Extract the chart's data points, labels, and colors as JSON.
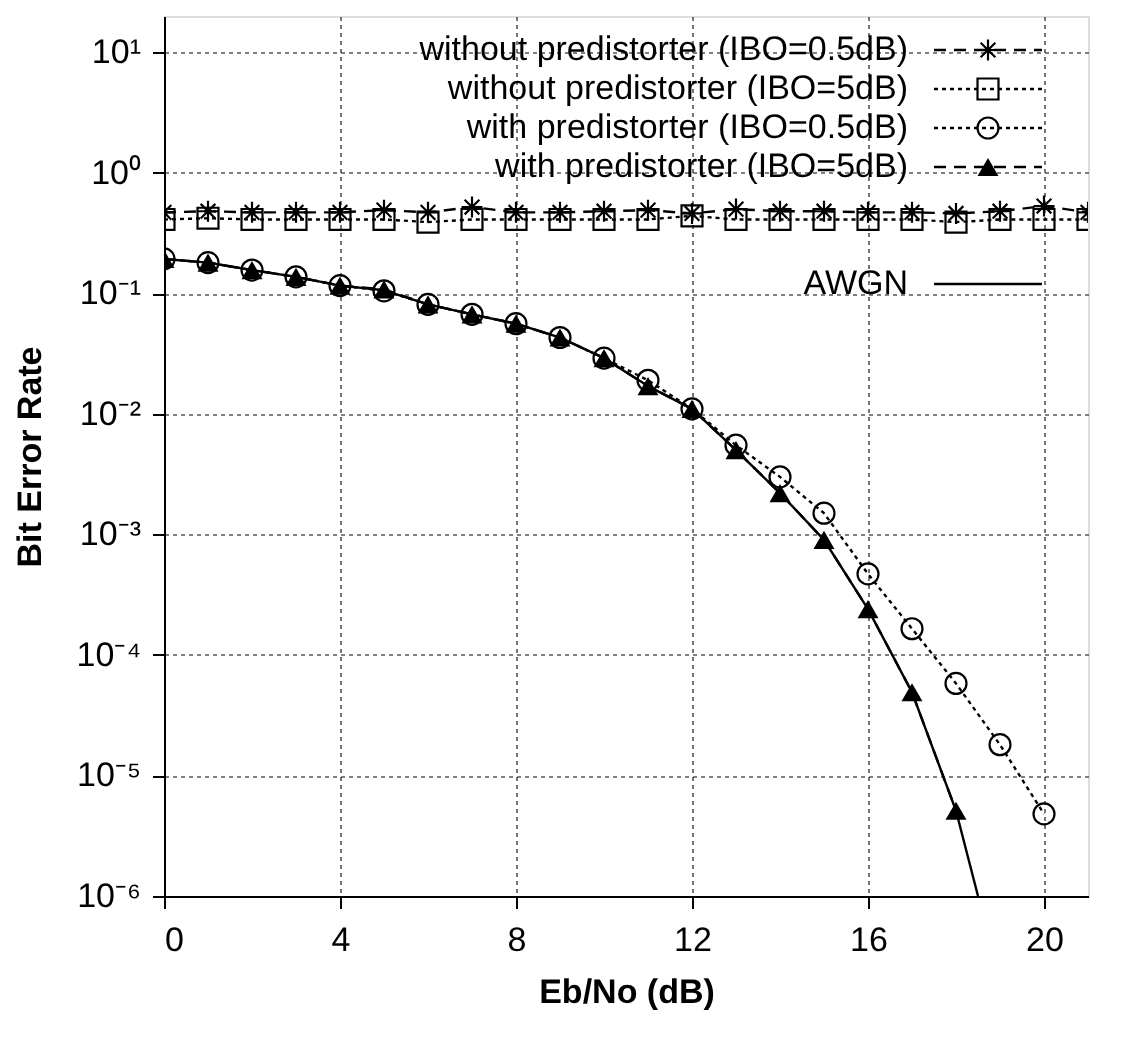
{
  "chart_data": {
    "type": "line",
    "xlabel": "Eb/No (dB)",
    "ylabel": "Bit Error Rate",
    "xlim": [
      0,
      21
    ],
    "xticks": [
      0,
      4,
      8,
      12,
      16,
      20
    ],
    "ylim": [
      1e-06,
      20
    ],
    "yticks": [
      {
        "value": 1e-06,
        "label": "10⁻⁶"
      },
      {
        "value": 1e-05,
        "label": "10⁻⁵"
      },
      {
        "value": 0.0001,
        "label": "10⁻⁴"
      },
      {
        "value": 0.001,
        "label": "10⁻³"
      },
      {
        "value": 0.01,
        "label": "10⁻²"
      },
      {
        "value": 0.1,
        "label": "10⁻¹"
      },
      {
        "value": 1,
        "label": "10⁰"
      },
      {
        "value": 10,
        "label": "10¹"
      }
    ],
    "log": "y",
    "grid": true,
    "legend": "top right",
    "series": [
      {
        "name": "without predistorter (IBO=0.5dB)",
        "color": "#000000",
        "marker": "cross",
        "line_style": "dashed",
        "x": [
          0,
          1,
          2,
          3,
          4,
          5,
          6,
          7,
          8,
          9,
          10,
          11,
          12,
          13,
          14,
          15,
          16,
          17,
          18,
          19,
          20,
          21
        ],
        "values": [
          0.47,
          0.48,
          0.47,
          0.47,
          0.47,
          0.49,
          0.47,
          0.52,
          0.47,
          0.47,
          0.48,
          0.49,
          0.46,
          0.5,
          0.48,
          0.48,
          0.47,
          0.47,
          0.46,
          0.48,
          0.53,
          0.47
        ]
      },
      {
        "name": "without predistorter (IBO=5dB)",
        "color": "#000000",
        "marker": "square",
        "line_style": "dotted",
        "x": [
          0,
          1,
          2,
          3,
          4,
          5,
          6,
          7,
          8,
          9,
          10,
          11,
          12,
          13,
          14,
          15,
          16,
          17,
          18,
          19,
          20,
          21
        ],
        "values": [
          0.41,
          0.42,
          0.41,
          0.41,
          0.41,
          0.41,
          0.39,
          0.41,
          0.41,
          0.41,
          0.41,
          0.41,
          0.44,
          0.41,
          0.41,
          0.41,
          0.41,
          0.41,
          0.39,
          0.41,
          0.41,
          0.41
        ]
      },
      {
        "name": "with predistorter (IBO=0.5dB)",
        "color": "#000000",
        "marker": "circle",
        "line_style": "dotted",
        "x": [
          0,
          1,
          2,
          3,
          4,
          5,
          6,
          7,
          8,
          9,
          10,
          11,
          12,
          13,
          14,
          15,
          16,
          17,
          18,
          19,
          20
        ],
        "values": [
          0.193,
          0.18,
          0.156,
          0.137,
          0.116,
          0.105,
          0.081,
          0.067,
          0.056,
          0.043,
          0.029,
          0.019,
          0.011,
          0.0055,
          0.003,
          0.0015,
          0.00047,
          0.000165,
          5.8e-05,
          1.8e-05,
          4.8e-06
        ]
      },
      {
        "name": "with predistorter (IBO=5dB)",
        "color": "#000000",
        "marker": "triangle",
        "line_style": "dashed",
        "x": [
          0,
          1,
          2,
          3,
          4,
          5,
          6,
          7,
          8,
          9,
          10,
          11,
          12,
          13,
          14,
          15,
          16,
          17,
          18
        ],
        "values": [
          0.193,
          0.18,
          0.156,
          0.137,
          0.116,
          0.108,
          0.081,
          0.067,
          0.056,
          0.043,
          0.029,
          0.017,
          0.011,
          0.005,
          0.0022,
          0.0009,
          0.00024,
          4.9e-05,
          5.1e-06
        ]
      },
      {
        "name": "AWGN",
        "color": "#000000",
        "marker": "none",
        "line_style": "solid",
        "x": [
          0,
          1,
          2,
          3,
          4,
          5,
          6,
          7,
          8,
          9,
          10,
          11,
          12,
          13,
          14,
          15,
          16,
          17,
          18,
          18.5
        ],
        "values": [
          0.193,
          0.18,
          0.156,
          0.137,
          0.116,
          0.106,
          0.081,
          0.067,
          0.056,
          0.043,
          0.029,
          0.017,
          0.011,
          0.005,
          0.0022,
          0.0009,
          0.00024,
          4.9e-05,
          5.1e-06,
          1e-06
        ]
      }
    ]
  }
}
